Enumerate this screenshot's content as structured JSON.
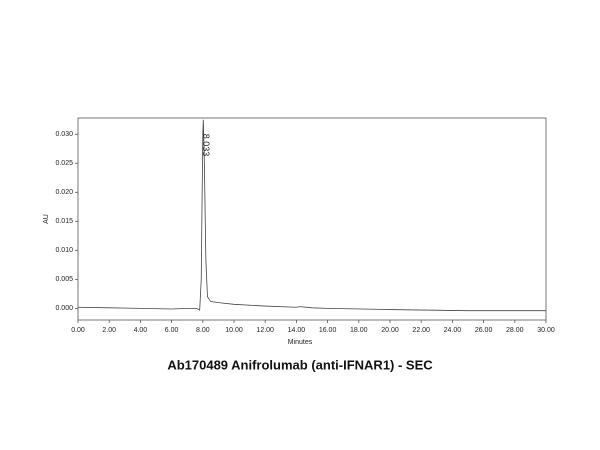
{
  "chart_data": {
    "type": "line",
    "title": "Ab170489 Anifrolumab (anti-IFNAR1) - SEC",
    "x_label": "Minutes",
    "y_label": "AU",
    "color": "#444444",
    "x": [
      0,
      2,
      4,
      6,
      7,
      7.6,
      7.8,
      7.9,
      8.0,
      8.033,
      8.1,
      8.2,
      8.3,
      8.5,
      9,
      10,
      12,
      14,
      14.2,
      15,
      16,
      20,
      25,
      30
    ],
    "values": [
      0.0002,
      0.0001,
      0.0,
      -0.0001,
      0.0,
      0.0,
      -0.0003,
      0.005,
      0.03,
      0.0325,
      0.025,
      0.008,
      0.002,
      0.0012,
      0.001,
      0.0007,
      0.0004,
      0.0002,
      0.0003,
      0.0001,
      0.0,
      -0.0002,
      -0.0004,
      -0.0004
    ],
    "annotations": [
      {
        "text": "8.033",
        "x": 8.033,
        "y": 0.0325
      }
    ],
    "xlim": [
      0,
      30
    ],
    "ylim": [
      -0.002,
      0.0328
    ],
    "xticks": [
      {
        "value": 0,
        "label": "0.00"
      },
      {
        "value": 2,
        "label": "2.00"
      },
      {
        "value": 4,
        "label": "4.00"
      },
      {
        "value": 6,
        "label": "6.00"
      },
      {
        "value": 8,
        "label": "8.00"
      },
      {
        "value": 10,
        "label": "10.00"
      },
      {
        "value": 12,
        "label": "12.00"
      },
      {
        "value": 14,
        "label": "14.00"
      },
      {
        "value": 16,
        "label": "16.00"
      },
      {
        "value": 18,
        "label": "18.00"
      },
      {
        "value": 20,
        "label": "20.00"
      },
      {
        "value": 22,
        "label": "22.00"
      },
      {
        "value": 24,
        "label": "24.00"
      },
      {
        "value": 26,
        "label": "26.00"
      },
      {
        "value": 28,
        "label": "28.00"
      },
      {
        "value": 30,
        "label": "30.00"
      }
    ],
    "yticks": [
      {
        "value": 0,
        "label": "0.000"
      },
      {
        "value": 0.005,
        "label": "0.005"
      },
      {
        "value": 0.01,
        "label": "0.010"
      },
      {
        "value": 0.015,
        "label": "0.015"
      },
      {
        "value": 0.02,
        "label": "0.020"
      },
      {
        "value": 0.025,
        "label": "0.025"
      },
      {
        "value": 0.03,
        "label": "0.030"
      }
    ]
  }
}
